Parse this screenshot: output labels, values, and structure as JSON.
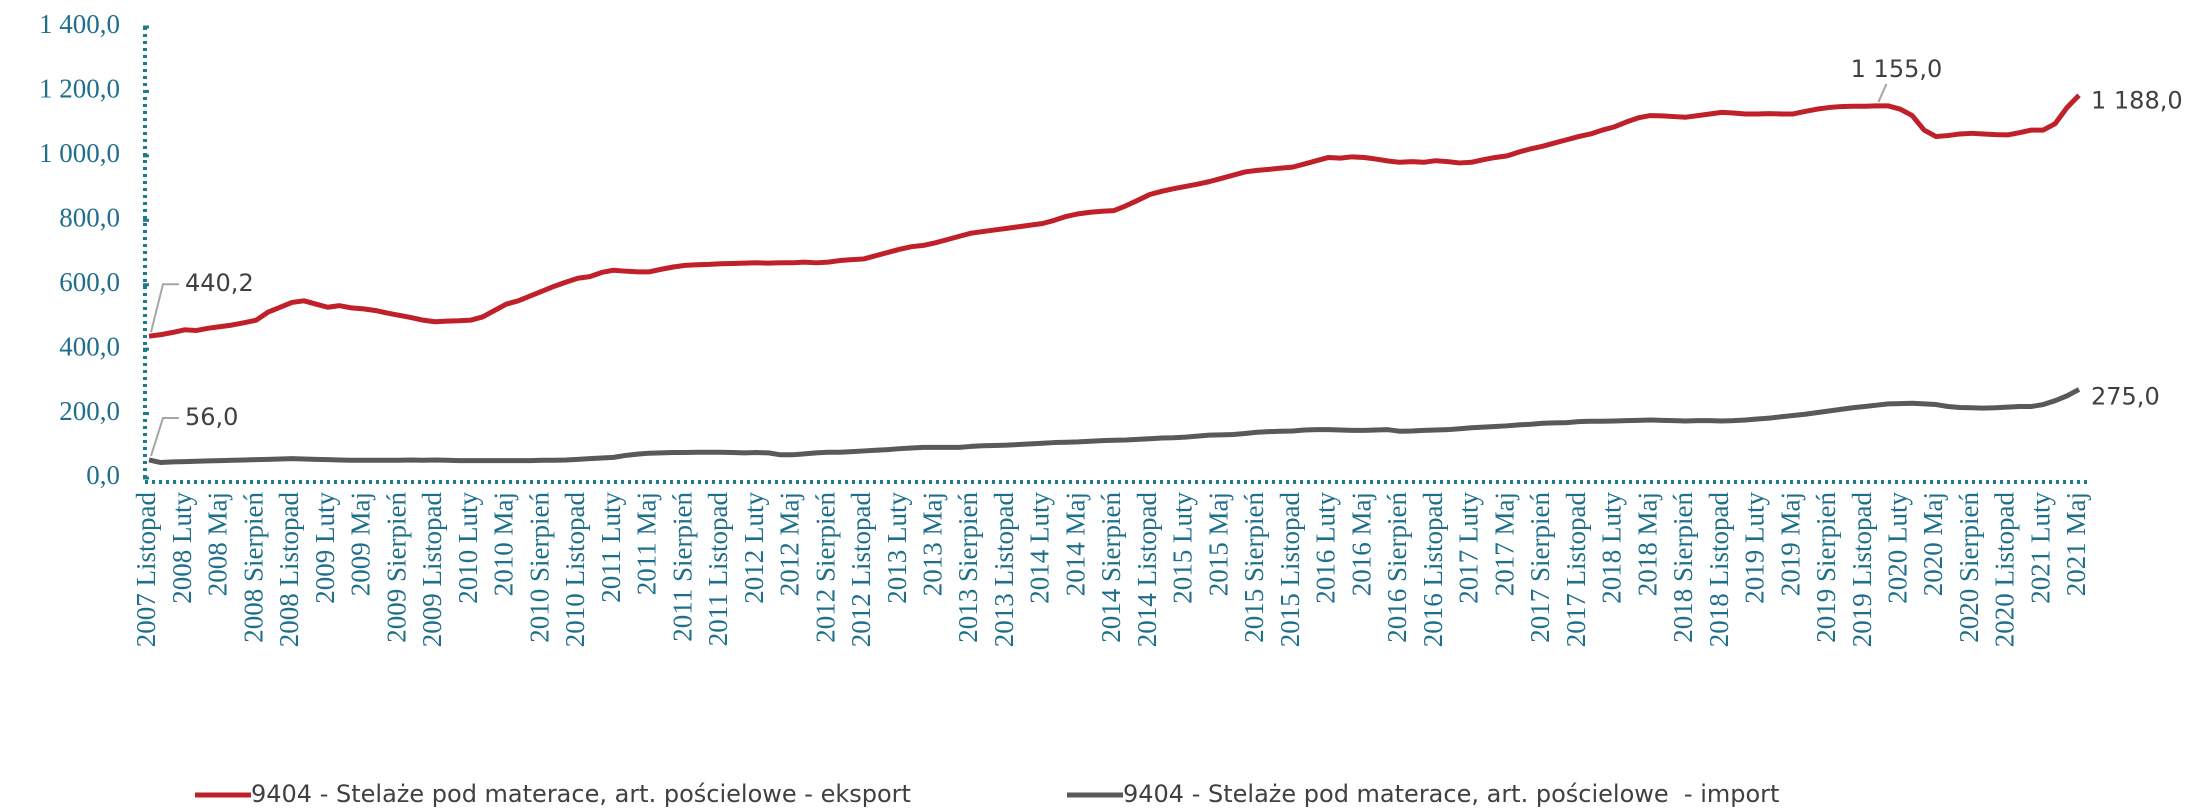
{
  "chart_data": {
    "type": "line",
    "categories": [
      "2007 Listopad",
      null,
      null,
      "2008 Luty",
      null,
      null,
      "2008 Maj",
      null,
      null,
      "2008 Sierpień",
      null,
      null,
      "2008 Listopad",
      null,
      null,
      "2009 Luty",
      null,
      null,
      "2009 Maj",
      null,
      null,
      "2009 Sierpień",
      null,
      null,
      "2009 Listopad",
      null,
      null,
      "2010 Luty",
      null,
      null,
      "2010 Maj",
      null,
      null,
      "2010 Sierpień",
      null,
      null,
      "2010 Listopad",
      null,
      null,
      "2011 Luty",
      null,
      null,
      "2011 Maj",
      null,
      null,
      "2011 Sierpień",
      null,
      null,
      "2011 Listopad",
      null,
      null,
      "2012 Luty",
      null,
      null,
      "2012 Maj",
      null,
      null,
      "2012 Sierpień",
      null,
      null,
      "2012 Listopad",
      null,
      null,
      "2013 Luty",
      null,
      null,
      "2013 Maj",
      null,
      null,
      "2013 Sierpień",
      null,
      null,
      "2013 Listopad",
      null,
      null,
      "2014 Luty",
      null,
      null,
      "2014 Maj",
      null,
      null,
      "2014 Sierpień",
      null,
      null,
      "2014 Listopad",
      null,
      null,
      "2015 Luty",
      null,
      null,
      "2015 Maj",
      null,
      null,
      "2015 Sierpień",
      null,
      null,
      "2015 Listopad",
      null,
      null,
      "2016 Luty",
      null,
      null,
      "2016 Maj",
      null,
      null,
      "2016 Sierpień",
      null,
      null,
      "2016 Listopad",
      null,
      null,
      "2017 Luty",
      null,
      null,
      "2017 Maj",
      null,
      null,
      "2017 Sierpień",
      null,
      null,
      "2017 Listopad",
      null,
      null,
      "2018 Luty",
      null,
      null,
      "2018 Maj",
      null,
      null,
      "2018 Sierpień",
      null,
      null,
      "2018 Listopad",
      null,
      null,
      "2019 Luty",
      null,
      null,
      "2019 Maj",
      null,
      null,
      "2019 Sierpień",
      null,
      null,
      "2019 Listopad",
      null,
      null,
      "2020 Luty",
      null,
      null,
      "2020 Maj",
      null,
      null,
      "2020 Sierpień",
      null,
      null,
      "2020 Listopad",
      null,
      null,
      "2021 Luty",
      null,
      null,
      "2021 Maj"
    ],
    "series": [
      {
        "name": "9404 - Stelaże pod materace, art. pościelowe - eksport",
        "color": "#c0202a",
        "values": [
          440.2,
          445,
          452,
          460,
          458,
          465,
          470,
          475,
          482,
          490,
          515,
          530,
          545,
          550,
          540,
          530,
          535,
          528,
          525,
          520,
          512,
          505,
          498,
          490,
          485,
          487,
          488,
          490,
          500,
          520,
          540,
          550,
          565,
          580,
          595,
          608,
          620,
          625,
          638,
          645,
          642,
          640,
          640,
          648,
          655,
          660,
          662,
          663,
          665,
          666,
          667,
          668,
          667,
          668,
          668,
          670,
          668,
          670,
          675,
          678,
          680,
          690,
          700,
          710,
          718,
          722,
          730,
          740,
          750,
          760,
          765,
          770,
          775,
          780,
          785,
          790,
          800,
          812,
          820,
          825,
          828,
          830,
          845,
          862,
          880,
          890,
          898,
          905,
          912,
          920,
          930,
          940,
          950,
          955,
          958,
          962,
          965,
          975,
          985,
          995,
          993,
          997,
          995,
          990,
          984,
          980,
          982,
          980,
          985,
          982,
          978,
          980,
          988,
          995,
          1000,
          1012,
          1022,
          1030,
          1040,
          1050,
          1060,
          1068,
          1080,
          1090,
          1105,
          1118,
          1125,
          1124,
          1122,
          1120,
          1125,
          1130,
          1135,
          1133,
          1130,
          1130,
          1131,
          1130,
          1130,
          1138,
          1145,
          1150,
          1153,
          1154,
          1154,
          1155,
          1155,
          1145,
          1125,
          1080,
          1060,
          1063,
          1068,
          1070,
          1068,
          1066,
          1065,
          1072,
          1080,
          1080,
          1100,
          1150,
          1188
        ],
        "value_labels": [
          "440,2",
          null,
          null,
          null,
          null,
          null,
          null,
          null,
          null,
          null,
          null,
          null,
          null,
          null,
          null,
          null,
          null,
          null,
          null,
          null,
          null,
          null,
          null,
          null,
          null,
          null,
          null,
          null,
          null,
          null,
          null,
          null,
          null,
          null,
          null,
          null,
          null,
          null,
          null,
          null,
          null,
          null,
          null,
          null,
          null,
          null,
          null,
          null,
          null,
          null,
          null,
          null,
          null,
          null,
          null,
          null,
          null,
          null,
          null,
          null,
          null,
          null,
          null,
          null,
          null,
          null,
          null,
          null,
          null,
          null,
          null,
          null,
          null,
          null,
          null,
          null,
          null,
          null,
          null,
          null,
          null,
          null,
          null,
          null,
          null,
          null,
          null,
          null,
          null,
          null,
          null,
          null,
          null,
          null,
          null,
          null,
          null,
          null,
          null,
          null,
          null,
          null,
          null,
          null,
          null,
          null,
          null,
          null,
          null,
          null,
          null,
          null,
          null,
          null,
          null,
          null,
          null,
          null,
          null,
          null,
          null,
          null,
          null,
          null,
          null,
          null,
          null,
          null,
          null,
          null,
          null,
          null,
          null,
          null,
          null,
          null,
          null,
          null,
          null,
          null,
          null,
          null,
          null,
          null,
          null,
          "1 155,0",
          null,
          null,
          null,
          null,
          null,
          null,
          null,
          null,
          null,
          null,
          null,
          null,
          null,
          null,
          null,
          null,
          "1 188,0"
        ]
      },
      {
        "name": "9404 - Stelaże pod materace, art. pościelowe  - import",
        "color": "#595959",
        "values": [
          56,
          48,
          50,
          51,
          52,
          53,
          54,
          55,
          56,
          57,
          58,
          59,
          60,
          59,
          58,
          57,
          56,
          55,
          55,
          55,
          55,
          55,
          56,
          55,
          56,
          55,
          54,
          54,
          54,
          54,
          54,
          54,
          54,
          55,
          55,
          56,
          58,
          60,
          62,
          64,
          70,
          74,
          77,
          78,
          79,
          79,
          80,
          80,
          80,
          79,
          78,
          79,
          78,
          72,
          72,
          75,
          78,
          80,
          80,
          82,
          84,
          86,
          88,
          91,
          93,
          95,
          95,
          95,
          95,
          98,
          100,
          101,
          102,
          104,
          106,
          108,
          110,
          111,
          112,
          114,
          116,
          117,
          118,
          120,
          122,
          124,
          125,
          127,
          130,
          133,
          134,
          135,
          138,
          142,
          144,
          145,
          146,
          149,
          150,
          150,
          149,
          148,
          148,
          149,
          150,
          145,
          146,
          148,
          149,
          150,
          153,
          156,
          158,
          160,
          162,
          165,
          167,
          170,
          171,
          172,
          175,
          176,
          176,
          177,
          178,
          179,
          180,
          179,
          178,
          177,
          178,
          178,
          177,
          178,
          180,
          183,
          186,
          190,
          194,
          198,
          203,
          208,
          213,
          218,
          222,
          226,
          230,
          231,
          232,
          230,
          228,
          222,
          219,
          218,
          217,
          218,
          220,
          222,
          222,
          228,
          240,
          255,
          275
        ],
        "value_labels": [
          "56,0",
          null,
          null,
          null,
          null,
          null,
          null,
          null,
          null,
          null,
          null,
          null,
          null,
          null,
          null,
          null,
          null,
          null,
          null,
          null,
          null,
          null,
          null,
          null,
          null,
          null,
          null,
          null,
          null,
          null,
          null,
          null,
          null,
          null,
          null,
          null,
          null,
          null,
          null,
          null,
          null,
          null,
          null,
          null,
          null,
          null,
          null,
          null,
          null,
          null,
          null,
          null,
          null,
          null,
          null,
          null,
          null,
          null,
          null,
          null,
          null,
          null,
          null,
          null,
          null,
          null,
          null,
          null,
          null,
          null,
          null,
          null,
          null,
          null,
          null,
          null,
          null,
          null,
          null,
          null,
          null,
          null,
          null,
          null,
          null,
          null,
          null,
          null,
          null,
          null,
          null,
          null,
          null,
          null,
          null,
          null,
          null,
          null,
          null,
          null,
          null,
          null,
          null,
          null,
          null,
          null,
          null,
          null,
          null,
          null,
          null,
          null,
          null,
          null,
          null,
          null,
          null,
          null,
          null,
          null,
          null,
          null,
          null,
          null,
          null,
          null,
          null,
          null,
          null,
          null,
          null,
          null,
          null,
          null,
          null,
          null,
          null,
          null,
          null,
          null,
          null,
          null,
          null,
          null,
          null,
          null,
          null,
          null,
          null,
          null,
          null,
          null,
          null,
          null,
          null,
          null,
          null,
          null,
          null,
          null,
          null,
          null,
          "275,0"
        ]
      }
    ],
    "ylim": [
      0,
      1400
    ],
    "yticks": [
      {
        "value": 0,
        "label": "0,0"
      },
      {
        "value": 200,
        "label": "200,0"
      },
      {
        "value": 400,
        "label": "400,0"
      },
      {
        "value": 600,
        "label": "600,0"
      },
      {
        "value": 800,
        "label": "800,0"
      },
      {
        "value": 1000,
        "label": "1 000,0"
      },
      {
        "value": 1200,
        "label": "1 200,0"
      },
      {
        "value": 1400,
        "label": "1 400,0"
      }
    ],
    "legend": "bottom"
  }
}
